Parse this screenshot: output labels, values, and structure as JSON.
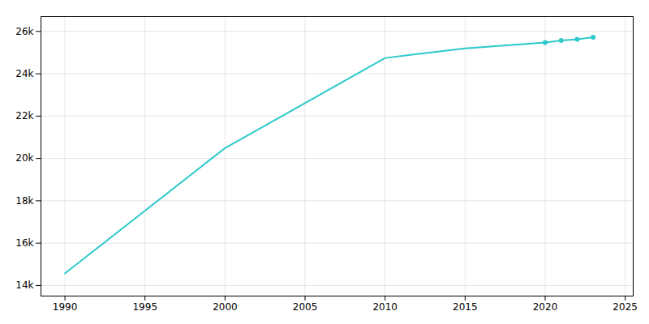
{
  "chart_data": {
    "type": "line",
    "x": [
      1990,
      2000,
      2010,
      2015,
      2020,
      2021,
      2022,
      2023
    ],
    "series": [
      {
        "type": "line",
        "color": "#2dc9cb",
        "values": [
          14574,
          20490,
          24744,
          25200,
          25477,
          25575,
          25632,
          25720
        ]
      },
      {
        "type": "scatter",
        "color": "#2dc9cb",
        "marker": "circle",
        "values": [
          null,
          null,
          null,
          null,
          25477,
          25575,
          25632,
          25720
        ]
      }
    ],
    "xlim": [
      1988.5,
      2025.5
    ],
    "ylim": [
      13500,
      26700
    ],
    "xticks": [
      1990,
      1995,
      2000,
      2005,
      2010,
      2015,
      2020,
      2025
    ],
    "yticks": [
      {
        "value": 14000,
        "label": "14k"
      },
      {
        "value": 16000,
        "label": "16k"
      },
      {
        "value": 18000,
        "label": "18k"
      },
      {
        "value": 20000,
        "label": "20k"
      },
      {
        "value": 22000,
        "label": "22k"
      },
      {
        "value": 24000,
        "label": "24k"
      },
      {
        "value": 26000,
        "label": "26k"
      }
    ],
    "grid": true
  }
}
